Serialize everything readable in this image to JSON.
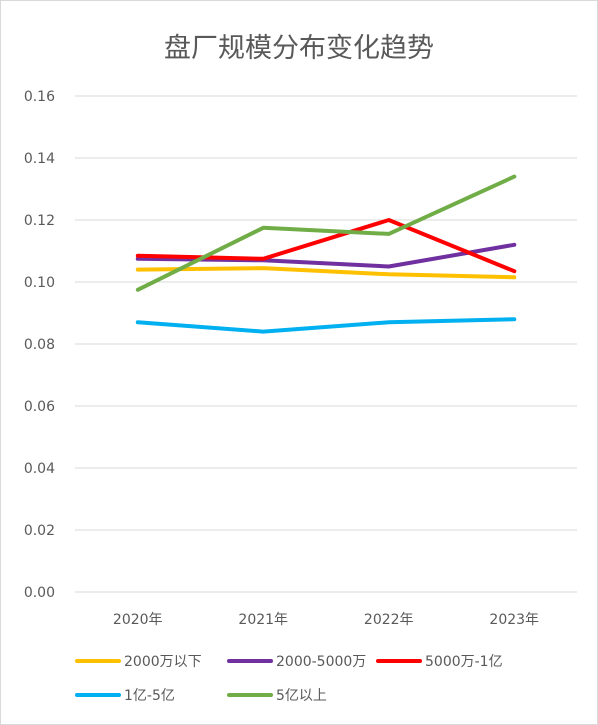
{
  "chart_data": {
    "type": "line",
    "title": "盘厂规模分布变化趋势",
    "xlabel": "",
    "ylabel": "",
    "categories": [
      "2020年",
      "2021年",
      "2022年",
      "2023年"
    ],
    "ylim": [
      0,
      0.16
    ],
    "yticks": [
      "0.00",
      "0.02",
      "0.04",
      "0.06",
      "0.08",
      "0.10",
      "0.12",
      "0.14",
      "0.16"
    ],
    "grid": true,
    "legend_position": "bottom",
    "series": [
      {
        "name": "2000万以下",
        "color": "#FFC000",
        "values": [
          0.104,
          0.1045,
          0.1025,
          0.1015
        ]
      },
      {
        "name": "2000-5000万",
        "color": "#7030A0",
        "values": [
          0.1075,
          0.107,
          0.105,
          0.112
        ]
      },
      {
        "name": "5000万-1亿",
        "color": "#FF0000",
        "values": [
          0.1085,
          0.1075,
          0.12,
          0.1035
        ]
      },
      {
        "name": "1亿-5亿",
        "color": "#00B0F0",
        "values": [
          0.087,
          0.084,
          0.087,
          0.088
        ]
      },
      {
        "name": "5亿以上",
        "color": "#70AD47",
        "values": [
          0.0975,
          0.1175,
          0.1155,
          0.134
        ]
      }
    ]
  }
}
